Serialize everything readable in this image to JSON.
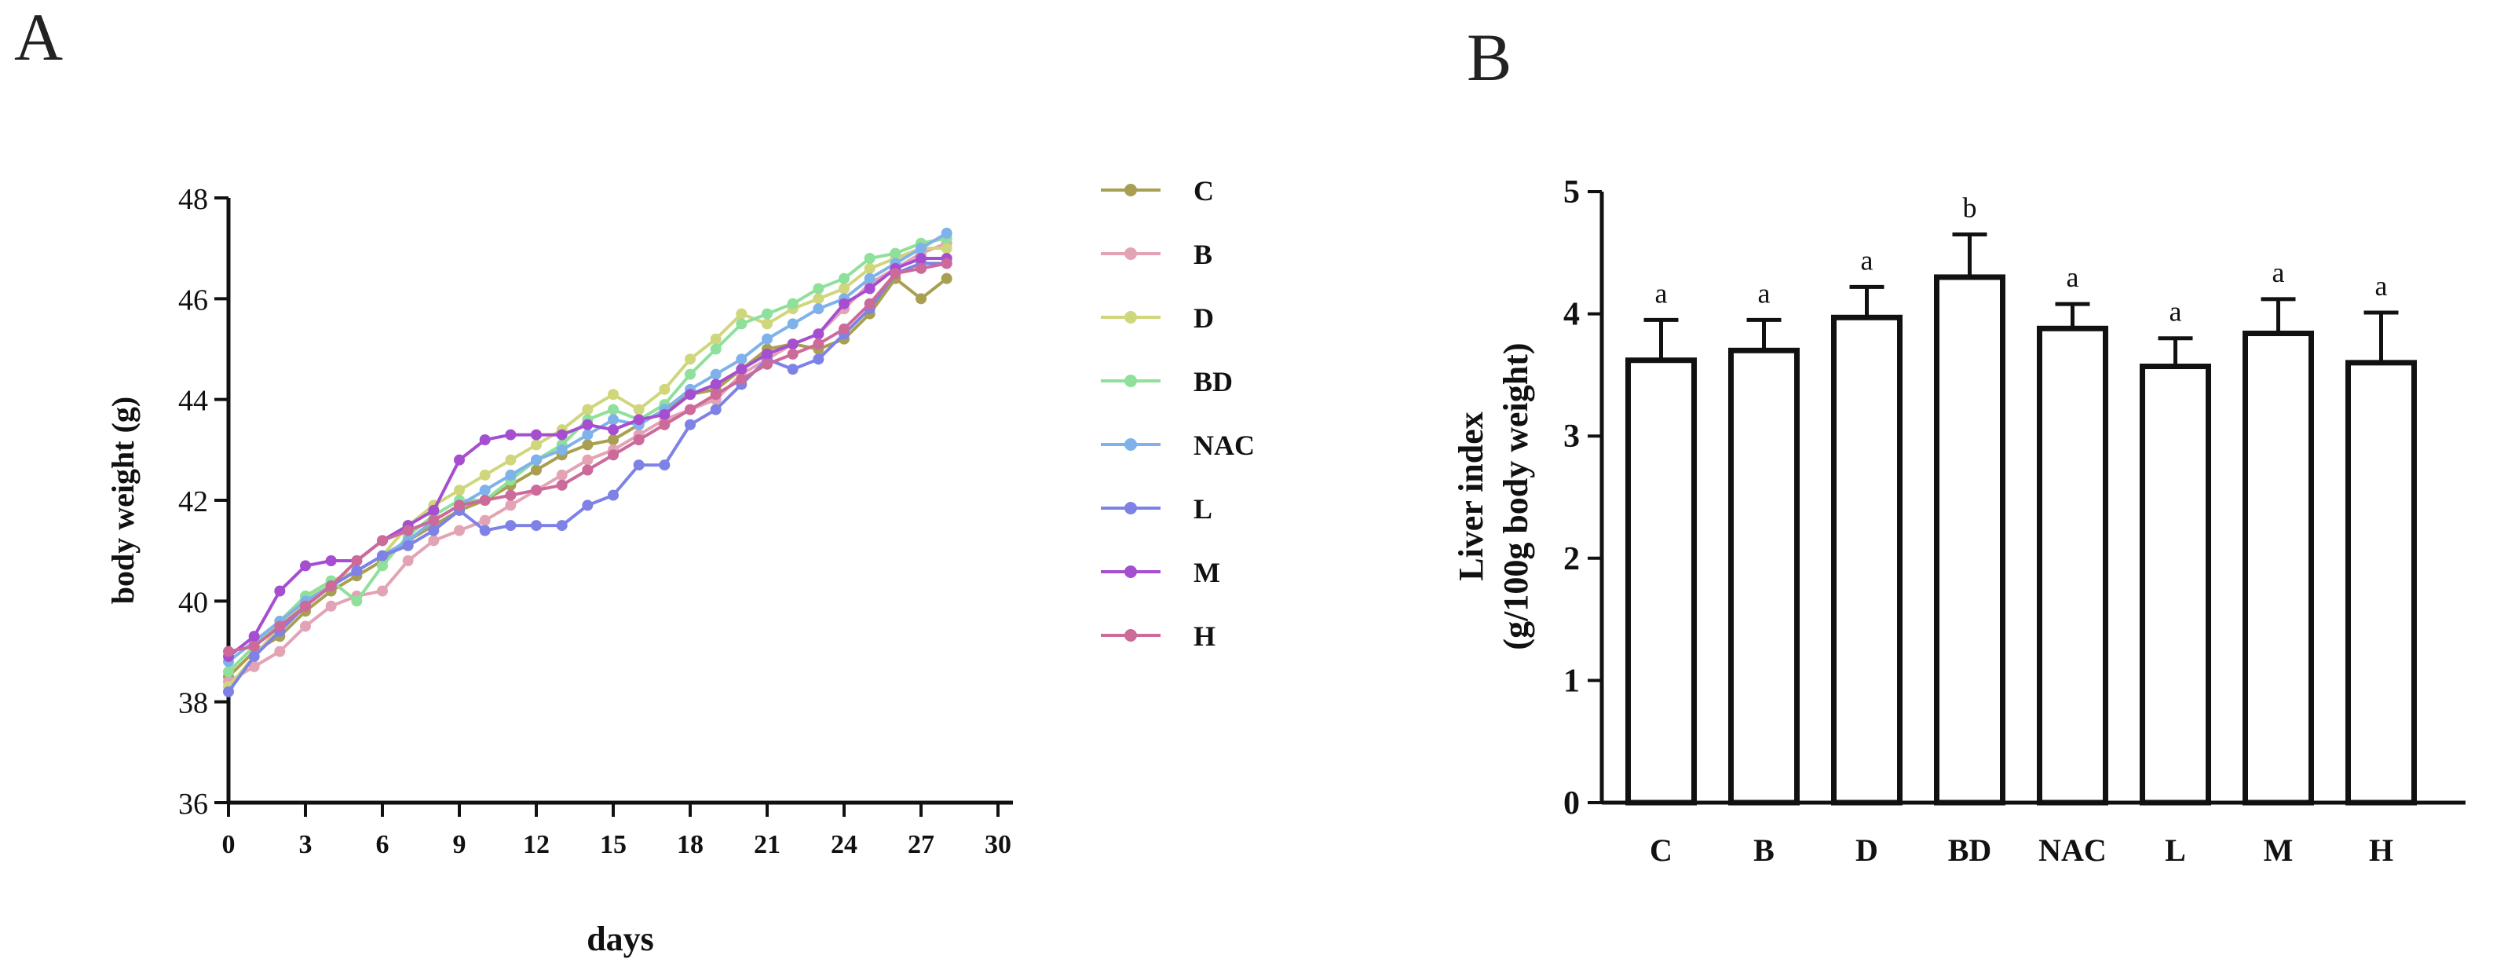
{
  "panels": {
    "a_label": "A",
    "b_label": "B"
  },
  "legend_colors": {
    "C": "#a8a050",
    "B": "#e2a4b4",
    "D": "#cfd67c",
    "BD": "#8ee09a",
    "NAC": "#7fb2ea",
    "L": "#7e82e6",
    "M": "#a64ed0",
    "H": "#cc6a9a"
  },
  "chart_data": [
    {
      "type": "line",
      "title": "",
      "xlabel": "days",
      "ylabel": "body weight (g)",
      "xlim": [
        0,
        30
      ],
      "ylim": [
        36,
        48
      ],
      "xticks": [
        0,
        3,
        6,
        9,
        12,
        15,
        18,
        21,
        24,
        27,
        30
      ],
      "yticks": [
        36,
        38,
        40,
        42,
        44,
        46,
        48
      ],
      "legend_position": "right",
      "x": [
        0,
        1,
        2,
        3,
        4,
        5,
        6,
        7,
        8,
        9,
        10,
        11,
        12,
        13,
        14,
        15,
        16,
        17,
        18,
        19,
        20,
        21,
        22,
        23,
        24,
        25,
        26,
        27,
        28
      ],
      "series": [
        {
          "name": "C",
          "values": [
            38.5,
            39.0,
            39.3,
            39.8,
            40.2,
            40.5,
            40.8,
            41.2,
            41.5,
            41.8,
            42.0,
            42.3,
            42.6,
            42.9,
            43.1,
            43.2,
            43.5,
            43.8,
            44.1,
            44.2,
            44.6,
            45.0,
            45.1,
            45.0,
            45.2,
            45.7,
            46.4,
            46.0,
            46.4
          ]
        },
        {
          "name": "B",
          "values": [
            38.4,
            38.7,
            39.0,
            39.5,
            39.9,
            40.1,
            40.2,
            40.8,
            41.2,
            41.4,
            41.6,
            41.9,
            42.2,
            42.5,
            42.8,
            43.0,
            43.3,
            43.6,
            43.8,
            44.0,
            44.5,
            44.8,
            45.1,
            45.3,
            45.8,
            46.3,
            46.6,
            46.9,
            47.1
          ]
        },
        {
          "name": "D",
          "values": [
            38.3,
            38.9,
            39.5,
            40.0,
            40.4,
            40.6,
            40.9,
            41.5,
            41.9,
            42.2,
            42.5,
            42.8,
            43.1,
            43.4,
            43.8,
            44.1,
            43.8,
            44.2,
            44.8,
            45.2,
            45.7,
            45.5,
            45.8,
            46.0,
            46.2,
            46.6,
            46.8,
            47.0,
            47.0
          ]
        },
        {
          "name": "BD",
          "values": [
            38.6,
            39.1,
            39.6,
            40.1,
            40.4,
            40.0,
            40.7,
            41.3,
            41.7,
            42.0,
            42.0,
            42.4,
            42.8,
            43.1,
            43.6,
            43.8,
            43.6,
            43.9,
            44.5,
            45.0,
            45.5,
            45.7,
            45.9,
            46.2,
            46.4,
            46.8,
            46.9,
            47.1,
            47.2
          ]
        },
        {
          "name": "NAC",
          "values": [
            38.8,
            39.2,
            39.6,
            40.0,
            40.3,
            40.6,
            40.9,
            41.2,
            41.6,
            41.9,
            42.2,
            42.5,
            42.8,
            43.0,
            43.3,
            43.6,
            43.5,
            43.8,
            44.2,
            44.5,
            44.8,
            45.2,
            45.5,
            45.8,
            46.0,
            46.4,
            46.7,
            47.0,
            47.3
          ]
        },
        {
          "name": "L",
          "values": [
            38.2,
            38.9,
            39.4,
            39.9,
            40.3,
            40.6,
            40.9,
            41.1,
            41.4,
            41.8,
            41.4,
            41.5,
            41.5,
            41.5,
            41.9,
            42.1,
            42.7,
            42.7,
            43.5,
            43.8,
            44.3,
            44.8,
            44.6,
            44.8,
            45.3,
            45.8,
            46.5,
            46.7,
            46.7
          ]
        },
        {
          "name": "M",
          "values": [
            38.9,
            39.3,
            40.2,
            40.7,
            40.8,
            40.8,
            41.2,
            41.5,
            41.8,
            42.8,
            43.2,
            43.3,
            43.3,
            43.3,
            43.5,
            43.4,
            43.6,
            43.7,
            44.1,
            44.3,
            44.6,
            44.9,
            45.1,
            45.3,
            45.9,
            46.2,
            46.6,
            46.8,
            46.8
          ]
        },
        {
          "name": "H",
          "values": [
            39.0,
            39.1,
            39.5,
            39.9,
            40.3,
            40.8,
            41.2,
            41.4,
            41.6,
            41.9,
            42.0,
            42.1,
            42.2,
            42.3,
            42.6,
            42.9,
            43.2,
            43.5,
            43.8,
            44.1,
            44.4,
            44.7,
            44.9,
            45.1,
            45.4,
            45.9,
            46.5,
            46.6,
            46.7
          ]
        }
      ]
    },
    {
      "type": "bar",
      "title": "",
      "xlabel": "",
      "ylabel_line1": "Liver index",
      "ylabel_line2": "(g/100g body weight)",
      "ylim": [
        0,
        5
      ],
      "yticks": [
        0,
        1,
        2,
        3,
        4,
        5
      ],
      "categories": [
        "C",
        "B",
        "D",
        "BD",
        "NAC",
        "L",
        "M",
        "H"
      ],
      "values": [
        3.62,
        3.7,
        3.97,
        4.3,
        3.88,
        3.57,
        3.84,
        3.6
      ],
      "errors": [
        0.33,
        0.25,
        0.25,
        0.35,
        0.2,
        0.23,
        0.28,
        0.41
      ],
      "significance": [
        "a",
        "a",
        "a",
        "b",
        "a",
        "a",
        "a",
        "a"
      ]
    }
  ]
}
